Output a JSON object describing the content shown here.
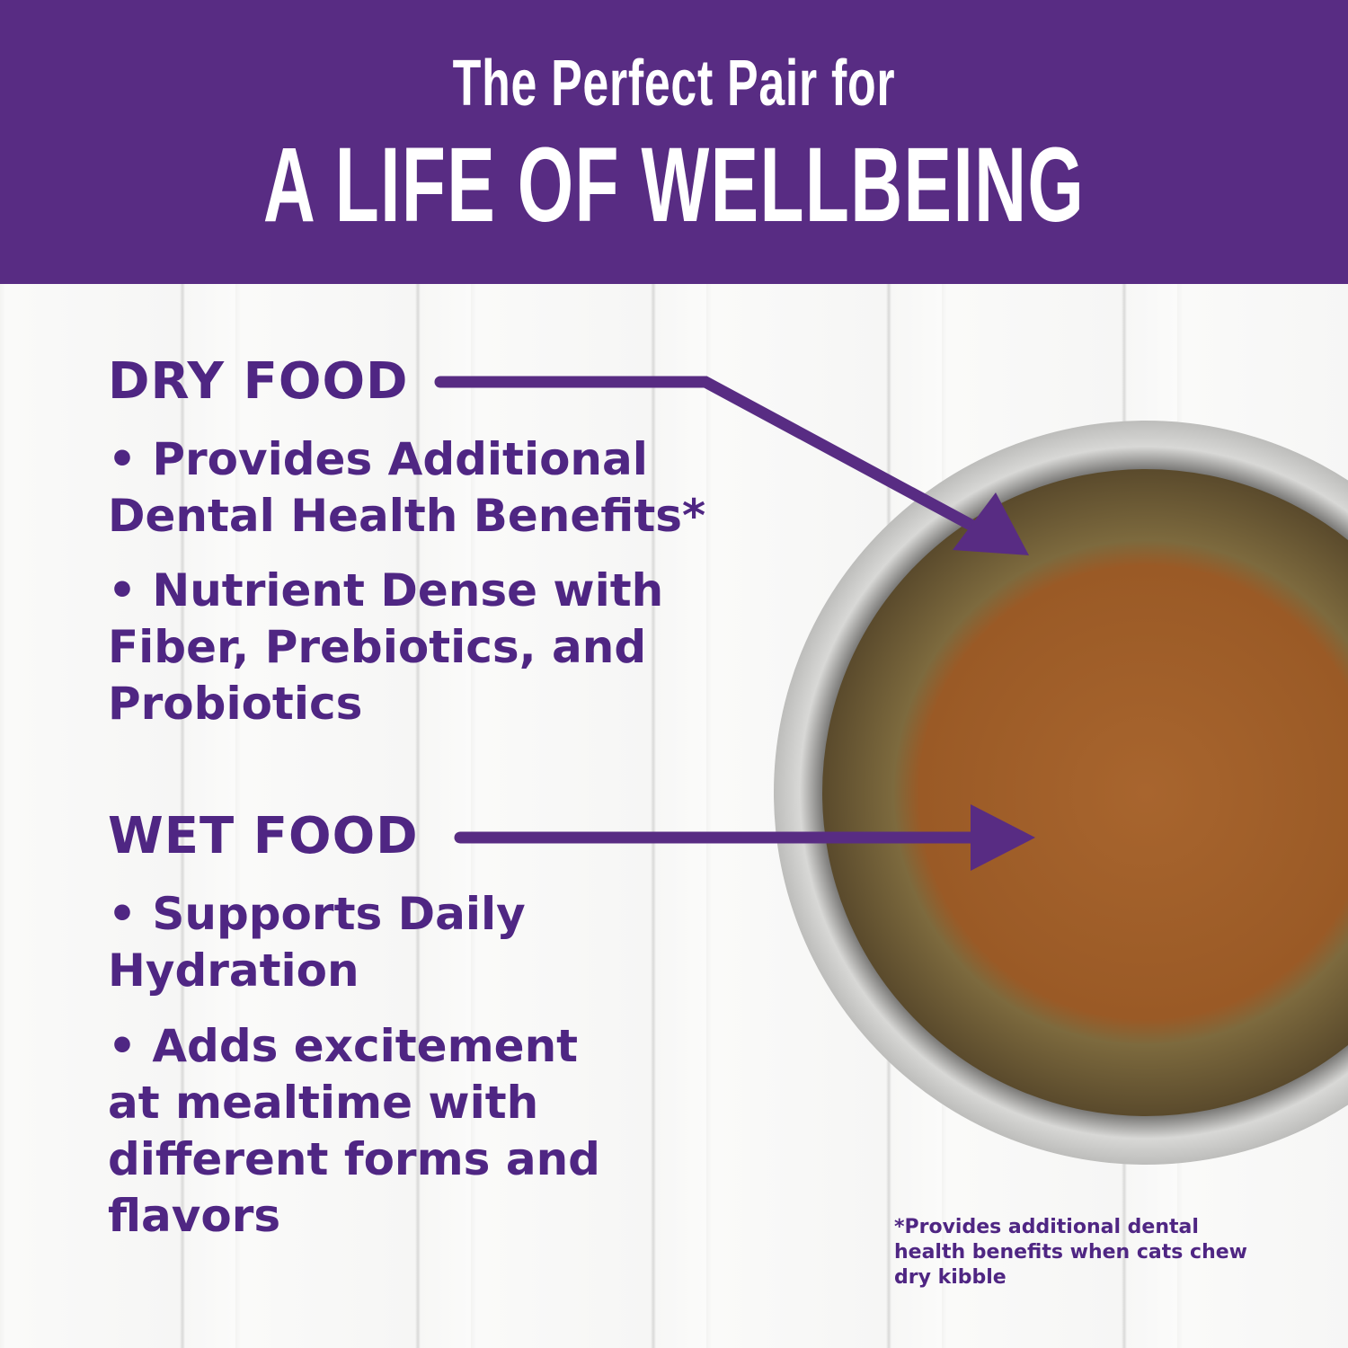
{
  "header": {
    "line1": "The Perfect Pair for",
    "line2": "A LIFE OF WELLBEING"
  },
  "dry": {
    "title": "DRY FOOD",
    "bullets": [
      "• Provides Additional Dental Health Benefits*",
      "• Nutrient Dense with Fiber, Prebiotics, and Probiotics"
    ]
  },
  "wet": {
    "title": "WET FOOD",
    "bullets": [
      "• Supports Daily Hydration",
      "• Adds excitement at mealtime with different forms and flavors"
    ]
  },
  "footnote": "*Provides additional dental health benefits when cats chew dry kibble",
  "colors": {
    "brand_purple": "#582c83",
    "text_purple": "#4f2683"
  }
}
